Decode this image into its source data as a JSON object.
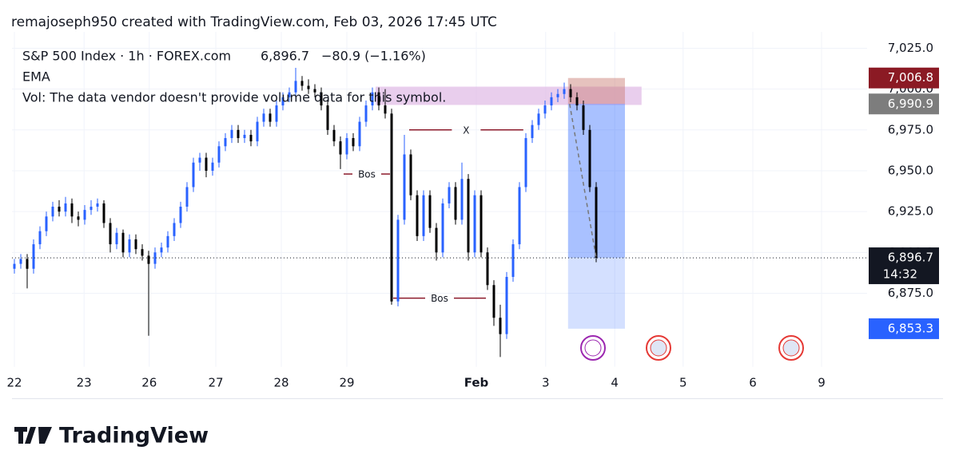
{
  "header": "remajoseph950 created with TradingView.com, Feb 03, 2026 17:45 UTC",
  "chart_data": {
    "type": "candlestick",
    "symbol": "S&P 500 Index · 1h · FOREX.com",
    "last": {
      "value": 6896.7,
      "label": "6,896.7"
    },
    "change": "−80.9 (−1.16%)",
    "indicators": [
      "EMA",
      "Vol: The data vendor doesn't provide volume data for this symbol."
    ],
    "countdown": "14:32",
    "candles": [
      [
        6890,
        6896,
        6887,
        6893
      ],
      [
        6893,
        6899,
        6890,
        6896
      ],
      [
        6896,
        6899,
        6878,
        6890
      ],
      [
        6890,
        6908,
        6887,
        6905
      ],
      [
        6905,
        6916,
        6902,
        6913
      ],
      [
        6913,
        6925,
        6910,
        6922
      ],
      [
        6922,
        6931,
        6919,
        6928
      ],
      [
        6928,
        6932,
        6922,
        6925
      ],
      [
        6925,
        6934,
        6922,
        6930
      ],
      [
        6930,
        6933,
        6918,
        6922
      ],
      [
        6922,
        6925,
        6916,
        6920
      ],
      [
        6920,
        6929,
        6917,
        6926
      ],
      [
        6926,
        6932,
        6923,
        6928
      ],
      [
        6928,
        6933,
        6925,
        6930
      ],
      [
        6930,
        6932,
        6915,
        6918
      ],
      [
        6918,
        6921,
        6900,
        6905
      ],
      [
        6905,
        6915,
        6902,
        6912
      ],
      [
        6912,
        6914,
        6897,
        6900
      ],
      [
        6900,
        6911,
        6897,
        6908
      ],
      [
        6908,
        6911,
        6899,
        6902
      ],
      [
        6902,
        6905,
        6895,
        6898
      ],
      [
        6898,
        6901,
        6849,
        6893
      ],
      [
        6893,
        6903,
        6890,
        6900
      ],
      [
        6900,
        6906,
        6897,
        6903
      ],
      [
        6903,
        6913,
        6900,
        6910
      ],
      [
        6910,
        6921,
        6907,
        6918
      ],
      [
        6918,
        6931,
        6915,
        6928
      ],
      [
        6928,
        6943,
        6925,
        6940
      ],
      [
        6940,
        6958,
        6937,
        6955
      ],
      [
        6955,
        6961,
        6950,
        6958
      ],
      [
        6958,
        6961,
        6946,
        6950
      ],
      [
        6950,
        6958,
        6947,
        6955
      ],
      [
        6955,
        6968,
        6952,
        6965
      ],
      [
        6965,
        6973,
        6962,
        6970
      ],
      [
        6970,
        6978,
        6967,
        6975
      ],
      [
        6975,
        6978,
        6967,
        6970
      ],
      [
        6970,
        6975,
        6967,
        6972
      ],
      [
        6972,
        6975,
        6965,
        6968
      ],
      [
        6968,
        6983,
        6965,
        6980
      ],
      [
        6980,
        6988,
        6977,
        6985
      ],
      [
        6985,
        6988,
        6977,
        6980
      ],
      [
        6980,
        6993,
        6977,
        6990
      ],
      [
        6990,
        6998,
        6987,
        6995
      ],
      [
        6995,
        7001,
        6992,
        6998
      ],
      [
        6998,
        7013,
        6995,
        7005
      ],
      [
        7005,
        7008,
        6999,
        7002
      ],
      [
        7002,
        7006,
        6997,
        7000
      ],
      [
        7000,
        7003,
        6995,
        6998
      ],
      [
        6998,
        7001,
        6987,
        6990
      ],
      [
        6990,
        6993,
        6972,
        6975
      ],
      [
        6975,
        6978,
        6965,
        6968
      ],
      [
        6968,
        6971,
        6951,
        6960
      ],
      [
        6960,
        6973,
        6957,
        6970
      ],
      [
        6970,
        6973,
        6962,
        6965
      ],
      [
        6965,
        6983,
        6962,
        6980
      ],
      [
        6980,
        6993,
        6977,
        6990
      ],
      [
        6990,
        7001,
        6987,
        6998
      ],
      [
        6998,
        7001,
        6987,
        6990
      ],
      [
        6990,
        7000,
        6982,
        6985
      ],
      [
        6985,
        6988,
        6868,
        6870
      ],
      [
        6870,
        6923,
        6867,
        6920
      ],
      [
        6920,
        6972,
        6917,
        6960
      ],
      [
        6960,
        6963,
        6932,
        6935
      ],
      [
        6935,
        6938,
        6907,
        6910
      ],
      [
        6910,
        6938,
        6907,
        6935
      ],
      [
        6935,
        6938,
        6912,
        6915
      ],
      [
        6915,
        6918,
        6895,
        6900
      ],
      [
        6900,
        6933,
        6897,
        6930
      ],
      [
        6930,
        6943,
        6927,
        6940
      ],
      [
        6940,
        6943,
        6917,
        6920
      ],
      [
        6920,
        6955,
        6917,
        6945
      ],
      [
        6945,
        6948,
        6895,
        6900
      ],
      [
        6900,
        6938,
        6897,
        6935
      ],
      [
        6935,
        6938,
        6897,
        6900
      ],
      [
        6900,
        6903,
        6877,
        6880
      ],
      [
        6880,
        6883,
        6855,
        6860
      ],
      [
        6860,
        6868,
        6836,
        6850
      ],
      [
        6850,
        6888,
        6847,
        6885
      ],
      [
        6885,
        6908,
        6882,
        6905
      ],
      [
        6905,
        6943,
        6902,
        6940
      ],
      [
        6940,
        6973,
        6937,
        6970
      ],
      [
        6970,
        6981,
        6967,
        6978
      ],
      [
        6978,
        6988,
        6975,
        6985
      ],
      [
        6985,
        6993,
        6982,
        6990
      ],
      [
        6990,
        6998,
        6987,
        6995
      ],
      [
        6995,
        7000,
        6992,
        6997
      ],
      [
        6997,
        7004,
        6994,
        7000
      ],
      [
        7000,
        7003,
        6992,
        6995
      ],
      [
        6995,
        6998,
        6987,
        6990
      ],
      [
        6990,
        6993,
        6972,
        6975
      ],
      [
        6975,
        6978,
        6937,
        6940
      ],
      [
        6940,
        6943,
        6894,
        6896.7
      ]
    ],
    "colors": {
      "up": "#2962ff",
      "down": "#000000"
    },
    "xlim": [
      -0.375,
      133.375
    ],
    "xticks": [
      {
        "value": 0,
        "label": "22"
      },
      {
        "value": 10.9,
        "label": "23"
      },
      {
        "value": 21.1,
        "label": "26"
      },
      {
        "value": 31.5,
        "label": "27"
      },
      {
        "value": 41.75,
        "label": "28"
      },
      {
        "value": 52,
        "label": "29"
      },
      {
        "value": 72.25,
        "label": "Feb"
      },
      {
        "value": 83.1,
        "label": "3"
      },
      {
        "value": 93.9,
        "label": "4"
      },
      {
        "value": 104.6,
        "label": "5"
      },
      {
        "value": 115.5,
        "label": "6"
      },
      {
        "value": 126.25,
        "label": "9"
      }
    ],
    "ylim": [
      6830,
      7035
    ],
    "yticks": [
      {
        "value": 6875,
        "label": "6,875.0"
      },
      {
        "value": 6900,
        "label": "6,900.0"
      },
      {
        "value": 6925,
        "label": "6,925.0"
      },
      {
        "value": 6950,
        "label": "6,950.0"
      },
      {
        "value": 6975,
        "label": "6,975.0"
      },
      {
        "value": 7000,
        "label": "7,000.0"
      },
      {
        "value": 7025,
        "label": "7,025.0"
      }
    ],
    "grid": true,
    "annotations": [
      {
        "label": "Bos",
        "price": 6948,
        "x": [
          51.5,
          58.75
        ]
      },
      {
        "label": "X",
        "price": 6975,
        "x": [
          61.75,
          79.6
        ]
      },
      {
        "label": "Bos",
        "price": 6872,
        "x": [
          59.25,
          73.75
        ]
      }
    ],
    "zone": {
      "top": 7001.5,
      "bottom": 6990.3,
      "x": [
        56.5,
        98.1
      ]
    },
    "position": {
      "stop": {
        "value": 7006.8,
        "label": "7,006.8"
      },
      "entry": {
        "value": 6990.9,
        "label": "6,990.9"
      },
      "target": {
        "value": 6853.3,
        "label": "6,853.3"
      },
      "x": [
        86.6,
        95.5
      ]
    }
  },
  "footer": "TradingView"
}
